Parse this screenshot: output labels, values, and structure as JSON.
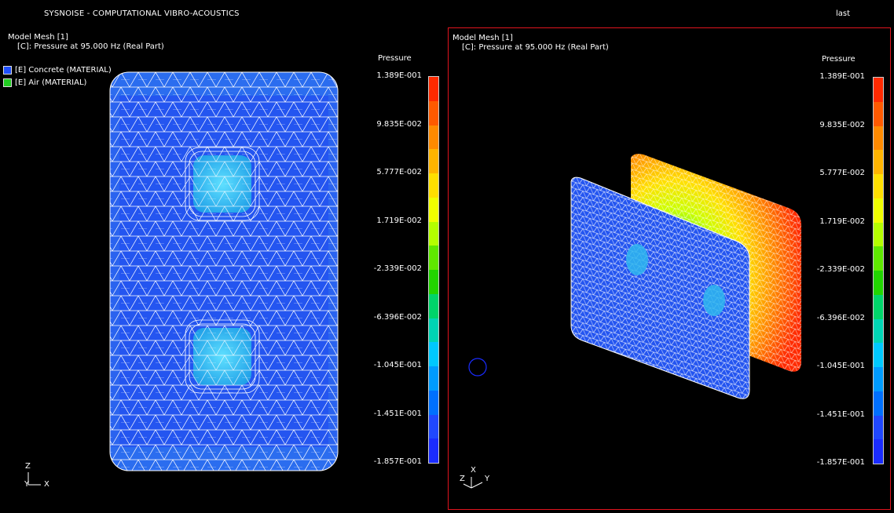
{
  "app": {
    "title": "SYSNOISE - COMPUTATIONAL VIBRO-ACOUSTICS",
    "status": "last"
  },
  "viewports": [
    {
      "mesh_title": "Model Mesh [1]",
      "result_label": "[C]: Pressure at 95.000 Hz (Real Part)",
      "legend": [
        {
          "label": "[E] Concrete (MATERIAL)",
          "color": "#1f4fff"
        },
        {
          "label": "[E] Air (MATERIAL)",
          "color": "#22cc22"
        }
      ],
      "axis": {
        "up": "Z",
        "left": "Y",
        "right": "X"
      },
      "colorbar_title": "Pressure"
    },
    {
      "mesh_title": "Model Mesh [1]",
      "result_label": "[C]: Pressure at 95.000 Hz (Real Part)",
      "axis": {
        "up": "X",
        "left": "Z",
        "right": "Y"
      },
      "colorbar_title": "Pressure"
    }
  ],
  "colorbar_ticks": [
    "1.389E-001",
    "9.835E-002",
    "5.777E-002",
    "1.719E-002",
    "-2.339E-002",
    "-6.396E-002",
    "-1.045E-001",
    "-1.451E-001",
    "-1.857E-001"
  ],
  "colorbar_colors": [
    "#ff2a00",
    "#ff5a00",
    "#ff8a00",
    "#ffb400",
    "#ffdf00",
    "#f0ff00",
    "#b4ff00",
    "#5fe800",
    "#22d400",
    "#00d46a",
    "#00d4b4",
    "#00c8ff",
    "#009bff",
    "#0070ff",
    "#2048ff",
    "#1a2cff"
  ],
  "colors": {
    "concrete": "#2455f0",
    "hole": "#2fb7ee",
    "warm": "#ff2a00",
    "viewport_border": "#e0141e"
  }
}
